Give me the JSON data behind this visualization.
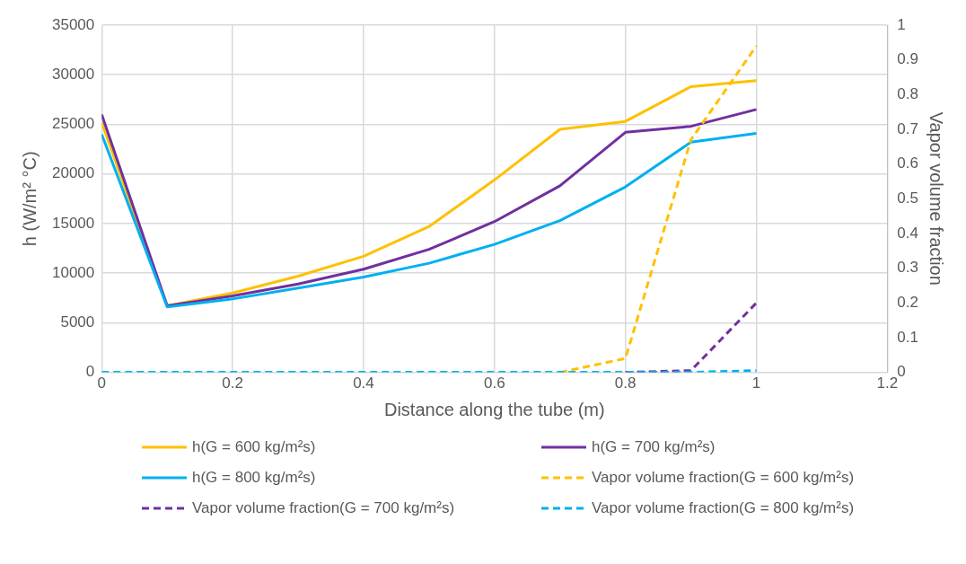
{
  "chart_data": {
    "type": "line",
    "xlabel": "Distance along the tube (m)",
    "ylabel": "h (W/m² °C)",
    "y2label": "Vapor volume fraction",
    "x": [
      0,
      0.1,
      0.2,
      0.3,
      0.4,
      0.5,
      0.6,
      0.7,
      0.8,
      0.9,
      1
    ],
    "series": [
      {
        "name": "h(G = 600 kg/m²s)",
        "color": "#ffc000",
        "values": [
          25200,
          6700,
          8000,
          9700,
          11700,
          14700,
          19400,
          24500,
          25300,
          28800,
          29400
        ]
      },
      {
        "name": "h(G = 700 kg/m²s)",
        "color": "#7030a0",
        "values": [
          26000,
          6700,
          7700,
          8900,
          10400,
          12400,
          15200,
          18800,
          24200,
          24800,
          26500
        ]
      },
      {
        "name": "h(G = 800 kg/m²s)",
        "color": "#00b0f0",
        "values": [
          24000,
          6600,
          7400,
          8500,
          9600,
          11000,
          12900,
          15300,
          18700,
          23200,
          24100
        ]
      },
      {
        "name": "Vapor volume fraction(G = 600 kg/m²s)",
        "color": "#ffc000",
        "axis": "y2",
        "line_style": "dashed",
        "values": [
          null,
          null,
          null,
          null,
          null,
          null,
          null,
          0,
          0.04,
          0.67,
          0.94
        ]
      },
      {
        "name": "Vapor volume fraction(G = 700 kg/m²s)",
        "color": "#7030a0",
        "axis": "y2",
        "line_style": "dashed",
        "values": [
          null,
          null,
          null,
          null,
          null,
          null,
          null,
          null,
          0,
          0.005,
          0.2
        ]
      },
      {
        "name": "Vapor volume fraction(G = 800 kg/m²s)",
        "color": "#00b0f0",
        "axis": "y2",
        "line_style": "dashed",
        "values": [
          0,
          0,
          0,
          0,
          0,
          0,
          0,
          0,
          0,
          0,
          0.005
        ]
      }
    ],
    "xlim": [
      0,
      1.2
    ],
    "xticks": [
      0,
      0.2,
      0.4,
      0.6,
      0.8,
      1,
      1.2
    ],
    "ylim": [
      0,
      35000
    ],
    "yticks": [
      0,
      5000,
      10000,
      15000,
      20000,
      25000,
      30000,
      35000
    ],
    "y2lim": [
      0,
      1
    ],
    "y2ticks": [
      0,
      0.1,
      0.2,
      0.3,
      0.4,
      0.5,
      0.6,
      0.7,
      0.8,
      0.9,
      1
    ],
    "grid": true,
    "legend": "bottom",
    "marker": "none",
    "line_style": "solid"
  }
}
